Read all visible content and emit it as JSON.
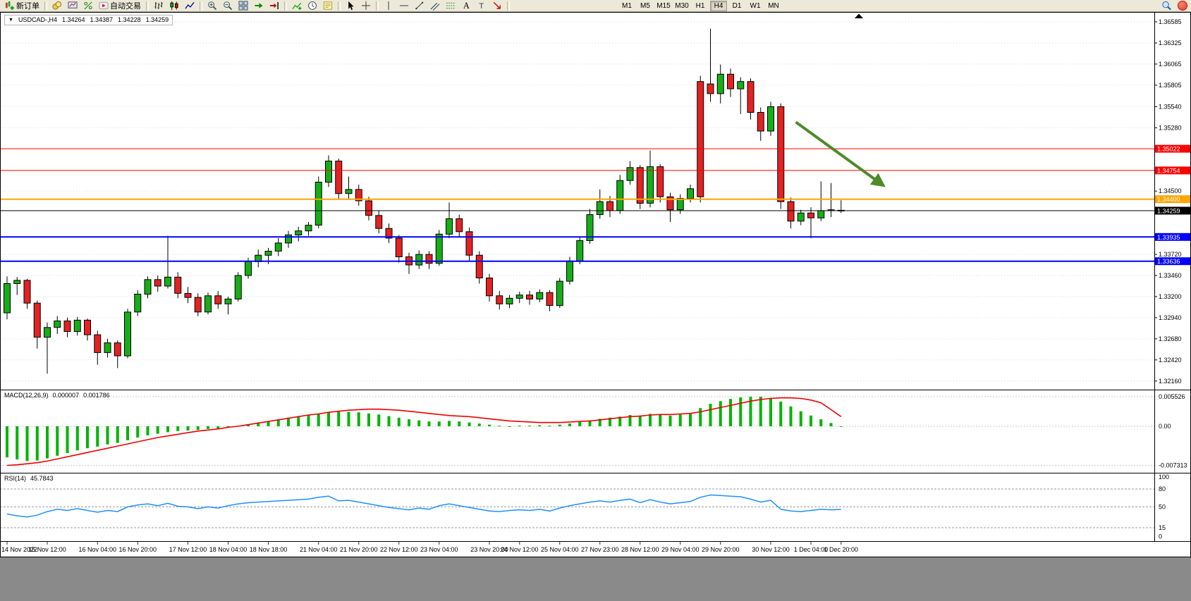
{
  "toolbar": {
    "new_order_label": "新订单",
    "autotrading_label": "自动交易",
    "timeframes": [
      "M1",
      "M5",
      "M15",
      "M30",
      "H1",
      "H4",
      "D1",
      "W1",
      "MN"
    ],
    "active_timeframe": "H4",
    "tools": [
      {
        "name": "new-order-button",
        "icon": "new-order",
        "label": "新订单"
      },
      {
        "sep": true
      },
      {
        "name": "coins-icon-button",
        "icon": "coins"
      },
      {
        "name": "charts-screen-button",
        "icon": "screen"
      },
      {
        "name": "percent-button",
        "icon": "percent"
      },
      {
        "name": "autotrading-button",
        "icon": "autotrade",
        "label": "自动交易"
      },
      {
        "sep": true
      },
      {
        "name": "bar-chart-button",
        "icon": "bars"
      },
      {
        "name": "candlestick-chart-button",
        "icon": "candles"
      },
      {
        "name": "line-chart-button",
        "icon": "linechart"
      },
      {
        "sep": true
      },
      {
        "name": "zoom-in-button",
        "icon": "zoom-in"
      },
      {
        "name": "zoom-out-button",
        "icon": "zoom-out"
      },
      {
        "name": "tile-windows-button",
        "icon": "tile"
      },
      {
        "name": "auto-scroll-button",
        "icon": "autoscroll"
      },
      {
        "name": "chart-shift-button",
        "icon": "shift"
      },
      {
        "sep": true
      },
      {
        "name": "indicators-button",
        "icon": "indicators"
      },
      {
        "name": "periods-button",
        "icon": "clock"
      },
      {
        "name": "templates-button",
        "icon": "template"
      },
      {
        "sep": true
      },
      {
        "name": "cursor-button",
        "icon": "cursor"
      },
      {
        "name": "crosshair-button",
        "icon": "crosshair"
      },
      {
        "sep": true
      },
      {
        "name": "vertical-line-button",
        "icon": "vline"
      },
      {
        "name": "horizontal-line-button",
        "icon": "hline"
      },
      {
        "name": "trendline-button",
        "icon": "trend"
      },
      {
        "name": "channel-button",
        "icon": "channel"
      },
      {
        "name": "fibonacci-button",
        "icon": "fibo"
      },
      {
        "name": "text-button",
        "icon": "text"
      },
      {
        "name": "label-button",
        "icon": "label"
      },
      {
        "name": "arrows-button",
        "icon": "arrows"
      },
      {
        "sep": true
      }
    ]
  },
  "symbol_info": {
    "collapse_glyph": "▼",
    "symbol": "USDCAD-,H4",
    "open": "1.34264",
    "high": "1.34387",
    "low": "1.34228",
    "close": "1.34259"
  },
  "panes": {
    "macd": {
      "title": "MACD(12,26,9)",
      "value_macd": "0.000007",
      "value_signal": "0.001786"
    },
    "rsi": {
      "title": "RSI(14)",
      "value": "45.7843"
    }
  },
  "chart_data": {
    "type": "candlestick",
    "symbol": "USDCAD",
    "timeframe": "H4",
    "title": "USDCAD-,H4  O 1.34264  H 1.34387  L 1.34228  C 1.34259",
    "price_axis_range": {
      "min": 1.3216,
      "max": 1.36585
    },
    "price_axis_ticks": [
      "1.36585",
      "1.36325",
      "1.36065",
      "1.35805",
      "1.35540",
      "1.35280",
      "1.34500",
      "1.33720",
      "1.33460",
      "1.33200",
      "1.32940",
      "1.32680",
      "1.32420",
      "1.32160"
    ],
    "colors": {
      "bull": "#17AD17",
      "bear": "#E32222",
      "wick": "#000000",
      "macd_histogram": "#00B400",
      "macd_signal": "#EE0000",
      "rsi_line": "#1E90FF",
      "arrow": "#4E8B2A",
      "resistance": "#FF0000",
      "pivot": "#FFA500",
      "support": "#0000FF",
      "current_price": "#000000"
    },
    "hlines": [
      {
        "price": 1.35022,
        "label": "1.35022",
        "color": "#FF0000",
        "width": 1
      },
      {
        "price": 1.34754,
        "label": "1.34754",
        "color": "#FF0000",
        "width": 1
      },
      {
        "price": 1.344,
        "label": "1.34400",
        "color": "#FFA500",
        "width": 2
      },
      {
        "price": 1.33935,
        "label": "1.33935",
        "color": "#0000FF",
        "width": 2
      },
      {
        "price": 1.33636,
        "label": "1.33636",
        "color": "#0000FF",
        "width": 2
      }
    ],
    "current_price": {
      "price": 1.34259,
      "label": "1.34259",
      "color": "#000000"
    },
    "arrow": {
      "from_index": 78.5,
      "from_price": 1.3535,
      "to_index": 87.2,
      "to_price": 1.3457,
      "color": "#4E8B2A",
      "width": 4
    },
    "x_axis": {
      "labels": [
        "14 Nov 2022",
        "15 Nov 12:00",
        "16 Nov 04:00",
        "16 Nov 20:00",
        "17 Nov 12:00",
        "18 Nov 04:00",
        "18 Nov 18:00",
        "21 Nov 04:00",
        "21 Nov 20:00",
        "22 Nov 12:00",
        "23 Nov 04:00",
        "23 Nov 20:00",
        "24 Nov 12:00",
        "25 Nov 04:00",
        "27 Nov 23:00",
        "28 Nov 12:00",
        "29 Nov 04:00",
        "29 Nov 20:00",
        "30 Nov 12:00",
        "1 Dec 04:00",
        "1 Dec 20:00"
      ],
      "indices": [
        0,
        4,
        9,
        13,
        18,
        22,
        26,
        31,
        35,
        39,
        43,
        48,
        51,
        55,
        59,
        63,
        67,
        71,
        76,
        80,
        83
      ]
    },
    "candles": [
      [
        1.33,
        1.3345,
        1.3292,
        1.3336
      ],
      [
        1.3336,
        1.3344,
        1.3322,
        1.334
      ],
      [
        1.334,
        1.3342,
        1.3305,
        1.3312
      ],
      [
        1.3312,
        1.3315,
        1.3256,
        1.327
      ],
      [
        1.327,
        1.3288,
        1.3225,
        1.3282
      ],
      [
        1.3282,
        1.3296,
        1.3274,
        1.329
      ],
      [
        1.329,
        1.3294,
        1.327,
        1.3277
      ],
      [
        1.3277,
        1.3295,
        1.3272,
        1.3291
      ],
      [
        1.3291,
        1.3293,
        1.3266,
        1.3273
      ],
      [
        1.3273,
        1.3278,
        1.3236,
        1.3251
      ],
      [
        1.3251,
        1.3268,
        1.3245,
        1.3263
      ],
      [
        1.3263,
        1.3266,
        1.3232,
        1.3247
      ],
      [
        1.3247,
        1.3305,
        1.3244,
        1.3301
      ],
      [
        1.3301,
        1.3328,
        1.3296,
        1.3323
      ],
      [
        1.3323,
        1.3345,
        1.3318,
        1.3341
      ],
      [
        1.3341,
        1.3346,
        1.3326,
        1.3333
      ],
      [
        1.3333,
        1.3395,
        1.333,
        1.3344
      ],
      [
        1.3344,
        1.335,
        1.3318,
        1.3324
      ],
      [
        1.3324,
        1.3332,
        1.3312,
        1.3319
      ],
      [
        1.3319,
        1.3324,
        1.3296,
        1.3301
      ],
      [
        1.3301,
        1.3325,
        1.3298,
        1.3321
      ],
      [
        1.3321,
        1.3327,
        1.3305,
        1.3311
      ],
      [
        1.3311,
        1.332,
        1.3298,
        1.3317
      ],
      [
        1.3317,
        1.335,
        1.3314,
        1.3346
      ],
      [
        1.3346,
        1.3368,
        1.3342,
        1.3363
      ],
      [
        1.3363,
        1.3378,
        1.3356,
        1.3371
      ],
      [
        1.3371,
        1.338,
        1.336,
        1.3376
      ],
      [
        1.3376,
        1.3392,
        1.337,
        1.3386
      ],
      [
        1.3386,
        1.3401,
        1.338,
        1.3396
      ],
      [
        1.3396,
        1.3406,
        1.3388,
        1.3401
      ],
      [
        1.3401,
        1.3412,
        1.3395,
        1.3408
      ],
      [
        1.3408,
        1.3468,
        1.3404,
        1.3461
      ],
      [
        1.3461,
        1.3494,
        1.3455,
        1.3487
      ],
      [
        1.3487,
        1.349,
        1.344,
        1.3447
      ],
      [
        1.3447,
        1.3468,
        1.3441,
        1.3452
      ],
      [
        1.3452,
        1.3458,
        1.3432,
        1.3438
      ],
      [
        1.3438,
        1.3443,
        1.3414,
        1.342
      ],
      [
        1.342,
        1.3426,
        1.3398,
        1.3404
      ],
      [
        1.3404,
        1.341,
        1.3386,
        1.3392
      ],
      [
        1.3392,
        1.3396,
        1.3362,
        1.3369
      ],
      [
        1.3369,
        1.3374,
        1.3348,
        1.3359
      ],
      [
        1.3359,
        1.3377,
        1.3354,
        1.3372
      ],
      [
        1.3372,
        1.3376,
        1.3354,
        1.3361
      ],
      [
        1.3361,
        1.3402,
        1.3358,
        1.3397
      ],
      [
        1.3397,
        1.3436,
        1.3392,
        1.3416
      ],
      [
        1.3416,
        1.3421,
        1.3394,
        1.34
      ],
      [
        1.34,
        1.3405,
        1.3364,
        1.3371
      ],
      [
        1.3371,
        1.3376,
        1.3336,
        1.3343
      ],
      [
        1.3343,
        1.3348,
        1.3314,
        1.3321
      ],
      [
        1.3321,
        1.3327,
        1.3304,
        1.3311
      ],
      [
        1.3311,
        1.3322,
        1.3306,
        1.3318
      ],
      [
        1.3318,
        1.3326,
        1.3312,
        1.3322
      ],
      [
        1.3322,
        1.3327,
        1.331,
        1.3317
      ],
      [
        1.3317,
        1.3329,
        1.3313,
        1.3325
      ],
      [
        1.3325,
        1.3328,
        1.3302,
        1.3309
      ],
      [
        1.3309,
        1.3343,
        1.3306,
        1.3339
      ],
      [
        1.3339,
        1.3369,
        1.3335,
        1.3364
      ],
      [
        1.3364,
        1.3394,
        1.336,
        1.3389
      ],
      [
        1.3389,
        1.3428,
        1.3385,
        1.3421
      ],
      [
        1.3421,
        1.3452,
        1.3416,
        1.3437
      ],
      [
        1.3437,
        1.3444,
        1.3418,
        1.3426
      ],
      [
        1.3426,
        1.347,
        1.3422,
        1.3463
      ],
      [
        1.3463,
        1.3487,
        1.3458,
        1.3479
      ],
      [
        1.3479,
        1.3482,
        1.3428,
        1.3435
      ],
      [
        1.3435,
        1.35,
        1.343,
        1.348
      ],
      [
        1.348,
        1.3483,
        1.3436,
        1.3443
      ],
      [
        1.3443,
        1.3448,
        1.3412,
        1.3427
      ],
      [
        1.3427,
        1.3446,
        1.3422,
        1.3441
      ],
      [
        1.3441,
        1.3458,
        1.3436,
        1.3453
      ],
      [
        1.3585,
        1.3592,
        1.3436,
        1.3443
      ],
      [
        1.3582,
        1.365,
        1.356,
        1.357
      ],
      [
        1.357,
        1.3606,
        1.3558,
        1.3594
      ],
      [
        1.3594,
        1.3601,
        1.3566,
        1.3576
      ],
      [
        1.3576,
        1.359,
        1.3545,
        1.3585
      ],
      [
        1.3585,
        1.3589,
        1.3538,
        1.3547
      ],
      [
        1.3547,
        1.3553,
        1.3512,
        1.3524
      ],
      [
        1.3524,
        1.356,
        1.3518,
        1.3554
      ],
      [
        1.3554,
        1.3558,
        1.3428,
        1.3437
      ],
      [
        1.3437,
        1.3442,
        1.3404,
        1.3413
      ],
      [
        1.3413,
        1.3427,
        1.3408,
        1.3423
      ],
      [
        1.3423,
        1.343,
        1.3392,
        1.3417
      ],
      [
        1.3417,
        1.3462,
        1.3413,
        1.3426
      ],
      [
        1.3426,
        1.346,
        1.3418,
        1.3427
      ],
      [
        1.34264,
        1.34387,
        1.34228,
        1.34259
      ]
    ],
    "macd": {
      "name": "MACD(12,26,9)",
      "value_macd": 7e-06,
      "value_signal": 0.001786,
      "axis_labels": [
        "0.005526",
        "0.00",
        "-0.007313"
      ],
      "histogram": [
        -0.0058,
        -0.0062,
        -0.0065,
        -0.0064,
        -0.006,
        -0.0055,
        -0.005,
        -0.0045,
        -0.0041,
        -0.0038,
        -0.0034,
        -0.0031,
        -0.0026,
        -0.0021,
        -0.0017,
        -0.0014,
        -0.0011,
        -0.0009,
        -0.0008,
        -0.0007,
        -0.0005,
        -0.0004,
        -0.0002,
        0.0001,
        0.0004,
        0.0007,
        0.001,
        0.0013,
        0.0016,
        0.0019,
        0.0021,
        0.0024,
        0.0026,
        0.0027,
        0.0027,
        0.0026,
        0.0024,
        0.0022,
        0.0019,
        0.0016,
        0.0013,
        0.0011,
        0.0009,
        0.0009,
        0.001,
        0.0009,
        0.0007,
        0.0005,
        0.0003,
        0.0001,
        0.0,
        0.0001,
        0.0001,
        0.0002,
        0.0001,
        0.0003,
        0.0005,
        0.0008,
        0.0011,
        0.0014,
        0.0016,
        0.0018,
        0.0021,
        0.002,
        0.0023,
        0.0022,
        0.002,
        0.0022,
        0.0025,
        0.0034,
        0.0042,
        0.0047,
        0.0051,
        0.0054,
        0.0055,
        0.0055,
        0.0053,
        0.0046,
        0.0037,
        0.0028,
        0.002,
        0.0013,
        0.0006,
        7e-06
      ],
      "signal": [
        -0.0073,
        -0.0072,
        -0.007,
        -0.0068,
        -0.0065,
        -0.0061,
        -0.0057,
        -0.0053,
        -0.0049,
        -0.0045,
        -0.0041,
        -0.0037,
        -0.0033,
        -0.0029,
        -0.0025,
        -0.0021,
        -0.0018,
        -0.0015,
        -0.0012,
        -0.0009,
        -0.0007,
        -0.0005,
        -0.0002,
        0.0,
        0.0003,
        0.0006,
        0.0009,
        0.0012,
        0.0015,
        0.0018,
        0.0021,
        0.0023,
        0.0026,
        0.0028,
        0.003,
        0.0031,
        0.0032,
        0.0032,
        0.0031,
        0.003,
        0.0028,
        0.0026,
        0.0024,
        0.0022,
        0.002,
        0.0019,
        0.0018,
        0.0016,
        0.0014,
        0.0012,
        0.001,
        0.0009,
        0.0008,
        0.0007,
        0.0007,
        0.0007,
        0.0008,
        0.0009,
        0.001,
        0.0012,
        0.0014,
        0.0016,
        0.0018,
        0.0019,
        0.0021,
        0.0022,
        0.0022,
        0.0023,
        0.0024,
        0.0027,
        0.0031,
        0.0035,
        0.0039,
        0.0043,
        0.0047,
        0.005,
        0.0052,
        0.0053,
        0.0053,
        0.0052,
        0.0049,
        0.0044,
        0.0031,
        0.0018
      ]
    },
    "rsi": {
      "name": "RSI(14)",
      "value": 45.7843,
      "axis_labels": [
        "100",
        "80",
        "50",
        "15",
        "0"
      ],
      "values": [
        38,
        35,
        33,
        36,
        42,
        46,
        44,
        47,
        44,
        41,
        44,
        42,
        50,
        53,
        55,
        52,
        56,
        51,
        50,
        47,
        50,
        48,
        52,
        55,
        57,
        58,
        59,
        60,
        61,
        62,
        63,
        66,
        68,
        60,
        61,
        58,
        55,
        52,
        49,
        47,
        45,
        48,
        46,
        52,
        55,
        52,
        49,
        46,
        43,
        42,
        44,
        45,
        44,
        46,
        43,
        48,
        52,
        55,
        58,
        60,
        58,
        61,
        63,
        57,
        62,
        58,
        55,
        57,
        59,
        66,
        70,
        69,
        68,
        67,
        63,
        58,
        61,
        46,
        43,
        42,
        44,
        46,
        45,
        45.78
      ]
    }
  }
}
